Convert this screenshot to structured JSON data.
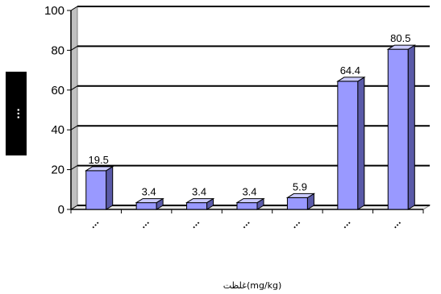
{
  "chart_data": {
    "type": "bar",
    "style": "3d-column",
    "categories": [
      "...",
      "...",
      "...",
      "...",
      "...",
      "...",
      "..."
    ],
    "values": [
      19.5,
      3.4,
      3.4,
      3.4,
      5.9,
      64.4,
      80.5
    ],
    "data_labels": [
      "19.5",
      "3.4",
      "3.4",
      "3.4",
      "5.9",
      "64.4",
      "80.5"
    ],
    "xlabel": "غلظت(mg/kg)",
    "ylabel": "...",
    "ylim": [
      0,
      100
    ],
    "yticks": [
      0,
      20,
      40,
      60,
      80,
      100
    ],
    "grid": true,
    "legend": "none",
    "colors": {
      "bar_front": "#9999ff",
      "bar_side": "#5a5aa8",
      "bar_top": "#ccccff",
      "gridline": "#000000",
      "wall": "#c0c0c0",
      "ylabel_bg": "#000000"
    }
  }
}
